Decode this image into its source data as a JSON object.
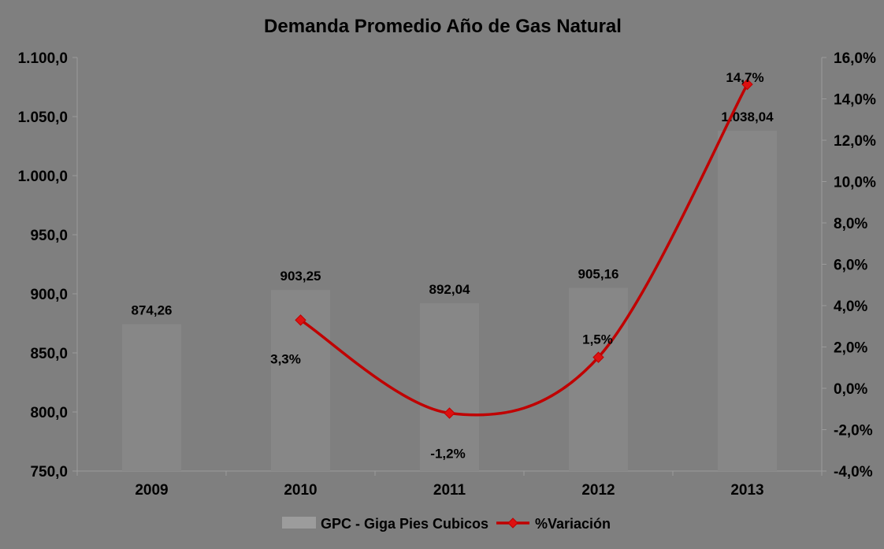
{
  "window": {
    "background": "#7f7f7f"
  },
  "chart_data": {
    "type": "bar",
    "subtype": "bar-line-combo",
    "title": "Demanda Promedio Año de Gas Natural",
    "categories": [
      "2009",
      "2010",
      "2011",
      "2012",
      "2013"
    ],
    "series": [
      {
        "name": "GPC - Giga Pies Cubicos",
        "type": "bar",
        "axis": "left",
        "color": "#878787",
        "legend_swatch_color": "#9c9c9c",
        "values": [
          874.26,
          903.25,
          892.04,
          905.16,
          1038.04
        ],
        "value_labels": [
          "874,26",
          "903,25",
          "892,04",
          "905,16",
          "1.038,04"
        ]
      },
      {
        "name": "%Variación",
        "type": "line",
        "axis": "right",
        "line_color": "#c00000",
        "marker_color": "#dd1111",
        "marker_shape": "diamond",
        "smooth": true,
        "values": [
          null,
          3.3,
          -1.2,
          1.5,
          14.7
        ],
        "value_labels": [
          null,
          "3,3%",
          "-1,2%",
          "1,5%",
          "14,7%"
        ],
        "label_offsets": [
          null,
          [
            -19,
            49
          ],
          [
            -2,
            51
          ],
          [
            -1,
            -23
          ],
          [
            -3,
            -9
          ]
        ]
      }
    ],
    "axes": {
      "left": {
        "min": 750,
        "max": 1100,
        "step": 50,
        "tick_labels": [
          "750,0",
          "800,0",
          "850,0",
          "900,0",
          "950,0",
          "1.000,0",
          "1.050,0",
          "1.100,0"
        ]
      },
      "right": {
        "min": -4,
        "max": 16,
        "step": 2,
        "tick_labels": [
          "-4,0%",
          "-2,0%",
          "0,0%",
          "2,0%",
          "4,0%",
          "6,0%",
          "8,0%",
          "10,0%",
          "12,0%",
          "14,0%",
          "16,0%"
        ]
      },
      "x": {
        "tick_labels": [
          "2009",
          "2010",
          "2011",
          "2012",
          "2013"
        ]
      }
    },
    "grid": false,
    "legend": {
      "position": "bottom",
      "entries": [
        {
          "label": "GPC - Giga Pies Cubicos",
          "marker": "bar-swatch"
        },
        {
          "label": "%Variación",
          "marker": "line-diamond"
        }
      ]
    },
    "colors": {
      "text": "#000000",
      "plot_border": "#9b9b9b",
      "background": "#7f7f7f"
    }
  }
}
